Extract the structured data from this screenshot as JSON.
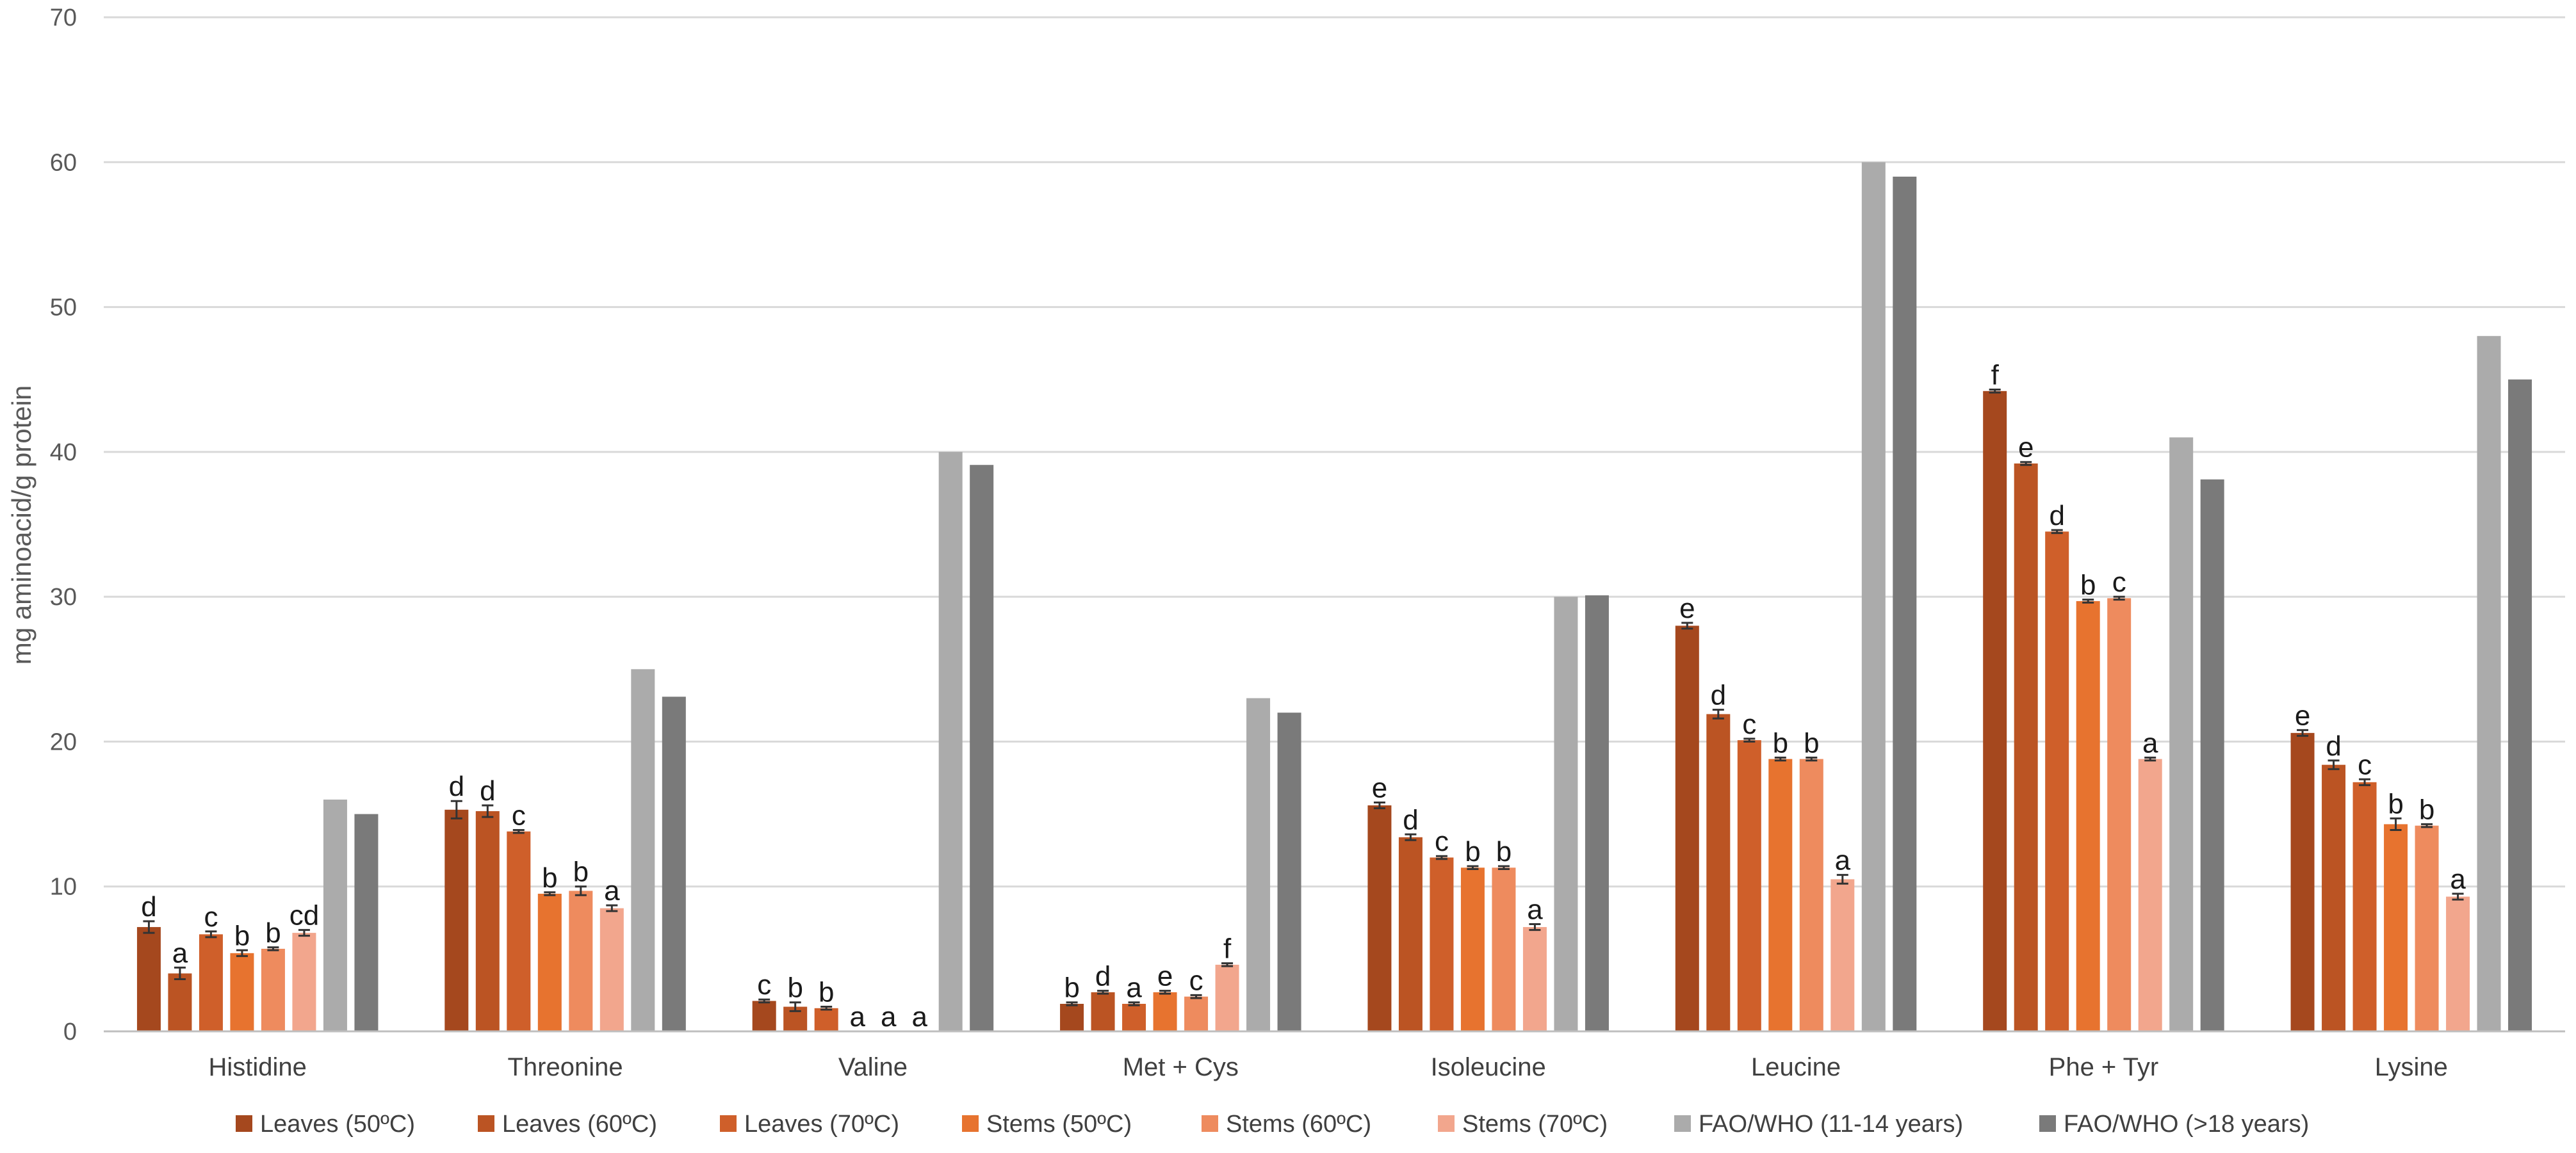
{
  "chart_data": {
    "type": "bar",
    "title": "",
    "xlabel": "",
    "ylabel": "mg aminoacid/g protein",
    "ylim": [
      0,
      70
    ],
    "yticks": [
      0,
      10,
      20,
      30,
      40,
      50,
      60,
      70
    ],
    "grid": true,
    "legend_position": "bottom",
    "categories": [
      "Histidine",
      "Threonine",
      "Valine",
      "Met + Cys",
      "Isoleucine",
      "Leucine",
      "Phe + Tyr",
      "Lysine"
    ],
    "series": [
      {
        "name": "Leaves (50ºC)",
        "color": "#A5481E",
        "values": [
          7.2,
          15.3,
          2.1,
          1.9,
          15.6,
          28.0,
          44.2,
          20.6
        ],
        "errors": [
          0.4,
          0.6,
          0.1,
          0.1,
          0.2,
          0.2,
          0.1,
          0.2
        ],
        "letters": [
          "d",
          "d",
          "c",
          "b",
          "e",
          "e",
          "f",
          "e"
        ]
      },
      {
        "name": "Leaves (60ºC)",
        "color": "#BB5423",
        "values": [
          4.0,
          15.2,
          1.7,
          2.7,
          13.4,
          21.9,
          39.2,
          18.4
        ],
        "errors": [
          0.4,
          0.4,
          0.3,
          0.1,
          0.2,
          0.3,
          0.1,
          0.3
        ],
        "letters": [
          "a",
          "d",
          "b",
          "d",
          "d",
          "d",
          "e",
          "d"
        ]
      },
      {
        "name": "Leaves (70ºC)",
        "color": "#CF5F2A",
        "values": [
          6.7,
          13.8,
          1.6,
          1.9,
          12.0,
          20.1,
          34.5,
          17.2
        ],
        "errors": [
          0.2,
          0.1,
          0.1,
          0.1,
          0.1,
          0.1,
          0.1,
          0.2
        ],
        "letters": [
          "c",
          "c",
          "b",
          "a",
          "c",
          "c",
          "d",
          "c"
        ]
      },
      {
        "name": "Stems (50ºC)",
        "color": "#E7732F",
        "values": [
          5.4,
          9.5,
          0,
          2.7,
          11.3,
          18.8,
          29.7,
          14.3
        ],
        "errors": [
          0.2,
          0.1,
          0,
          0.1,
          0.1,
          0.1,
          0.1,
          0.4
        ],
        "letters": [
          "b",
          "b",
          "a",
          "e",
          "b",
          "b",
          "b",
          "b"
        ]
      },
      {
        "name": "Stems (60ºC)",
        "color": "#EE8B5E",
        "values": [
          5.7,
          9.7,
          0,
          2.4,
          11.3,
          18.8,
          29.9,
          14.2
        ],
        "errors": [
          0.1,
          0.3,
          0,
          0.1,
          0.1,
          0.1,
          0.1,
          0.1
        ],
        "letters": [
          "b",
          "b",
          "a",
          "c",
          "b",
          "b",
          "c",
          "b"
        ]
      },
      {
        "name": "Stems (70ºC)",
        "color": "#F2A68D",
        "values": [
          6.8,
          8.5,
          0,
          4.6,
          7.2,
          10.5,
          18.8,
          9.3
        ],
        "errors": [
          0.2,
          0.2,
          0,
          0.1,
          0.2,
          0.3,
          0.1,
          0.2
        ],
        "letters": [
          "cd",
          "a",
          "a",
          "f",
          "a",
          "a",
          "a",
          "a"
        ]
      },
      {
        "name": "FAO/WHO (11-14 years)",
        "color": "#ABABAB",
        "values": [
          16,
          25,
          40,
          23,
          30,
          60,
          41,
          48
        ],
        "errors": [],
        "letters": []
      },
      {
        "name": "FAO/WHO (>18 years)",
        "color": "#7A7A7A",
        "values": [
          15,
          23.1,
          39.1,
          22,
          30.1,
          59,
          38.1,
          45
        ]
      }
    ]
  }
}
